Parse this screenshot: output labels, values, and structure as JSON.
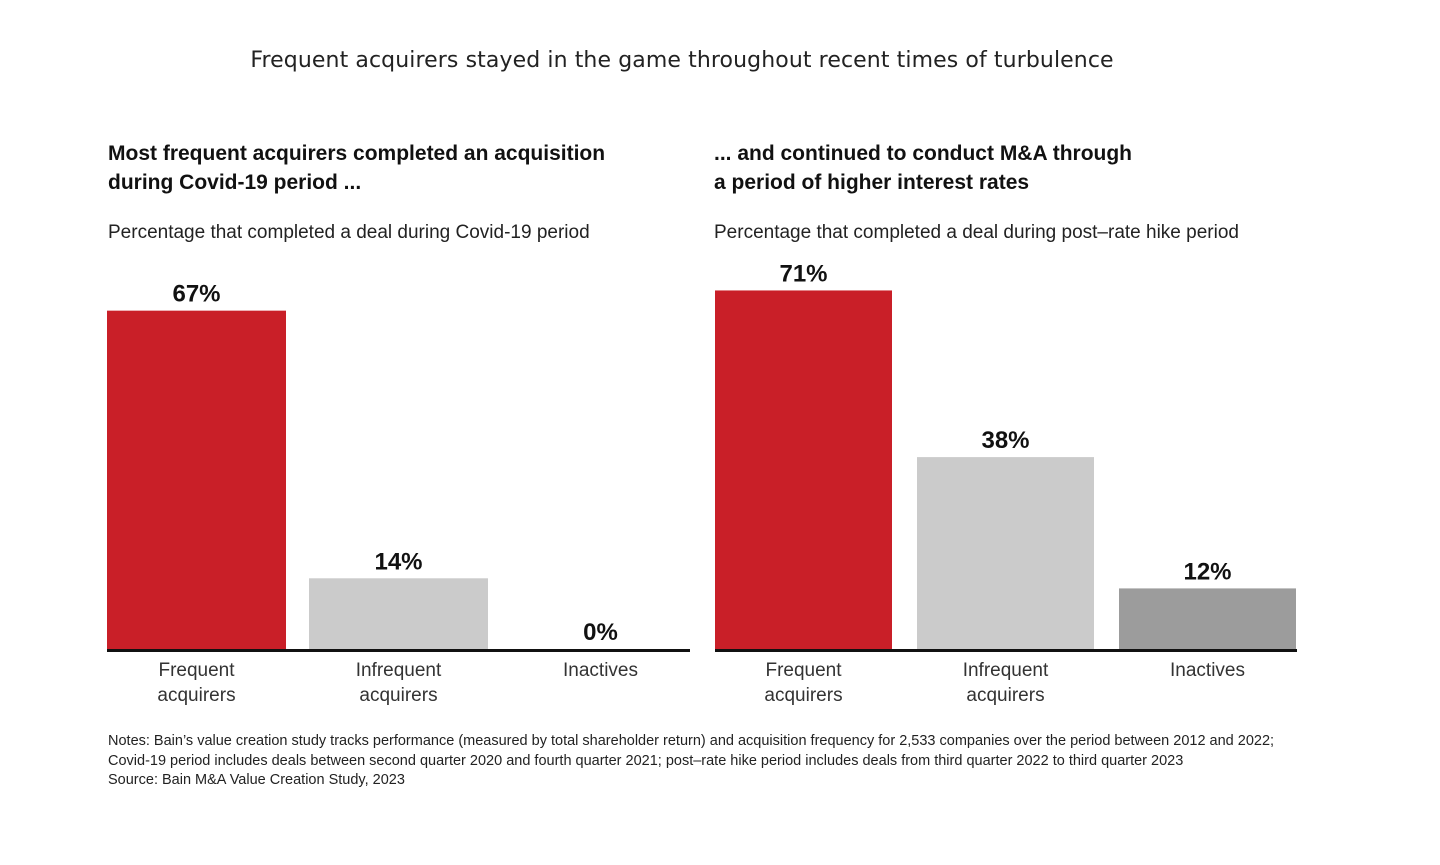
{
  "title": "Frequent acquirers stayed in the game throughout recent times of turbulence",
  "colors": {
    "red": "#c91f28",
    "light_gray": "#cbcbcb",
    "mid_gray": "#9c9c9c",
    "axis": "#111111"
  },
  "chart_data": [
    {
      "type": "bar",
      "title": "Most frequent acquirers completed an acquisition during Covid-19 period ...",
      "title_lines": [
        "Most frequent acquirers completed an acquisition",
        "during Covid-19 period ..."
      ],
      "subtitle": "Percentage that completed a deal during Covid-19 period",
      "categories": [
        "Frequent acquirers",
        "Infrequent acquirers",
        "Inactives"
      ],
      "category_lines": [
        [
          "Frequent",
          "acquirers"
        ],
        [
          "Infrequent",
          "acquirers"
        ],
        [
          "Inactives"
        ]
      ],
      "values": [
        67,
        14,
        0
      ],
      "value_labels": [
        "67%",
        "14%",
        "0%"
      ],
      "bar_colors": [
        "#c91f28",
        "#cbcbcb",
        "#9c9c9c"
      ],
      "xlabel": "",
      "ylabel": "",
      "ylim": [
        0,
        75
      ],
      "grid": false,
      "legend": "none"
    },
    {
      "type": "bar",
      "title": "... and continued to conduct M&A through a period of higher interest rates",
      "title_lines": [
        "... and continued to conduct M&A through",
        "a period of higher interest rates"
      ],
      "subtitle": "Percentage that completed a deal during post–rate hike period",
      "categories": [
        "Frequent acquirers",
        "Infrequent acquirers",
        "Inactives"
      ],
      "category_lines": [
        [
          "Frequent",
          "acquirers"
        ],
        [
          "Infrequent",
          "acquirers"
        ],
        [
          "Inactives"
        ]
      ],
      "values": [
        71,
        38,
        12
      ],
      "value_labels": [
        "71%",
        "38%",
        "12%"
      ],
      "bar_colors": [
        "#c91f28",
        "#cbcbcb",
        "#9c9c9c"
      ],
      "xlabel": "",
      "ylabel": "",
      "ylim": [
        0,
        75
      ],
      "grid": false,
      "legend": "none"
    }
  ],
  "notes": "Notes: Bain’s value creation study tracks performance (measured by total shareholder return) and acquisition frequency for 2,533 companies over the period between 2012 and 2022; Covid-19 period includes deals between second quarter 2020 and fourth quarter 2021; post–rate hike period includes deals from third quarter 2022 to third quarter 2023",
  "source": "Source: Bain M&A Value Creation Study, 2023"
}
